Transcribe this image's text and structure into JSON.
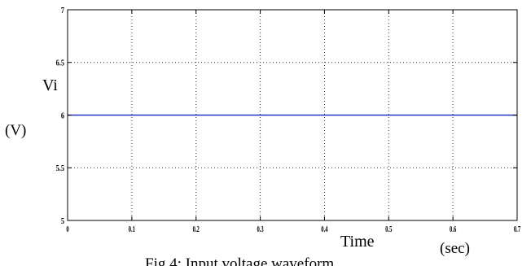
{
  "chart_data": {
    "type": "line",
    "title": "",
    "xlabel": "Time",
    "ylabel": "Vi",
    "y_unit": "(V)",
    "x_unit": "(sec)",
    "caption": "Fig.4: Input voltage waveform",
    "xlim": [
      0,
      0.7
    ],
    "ylim": [
      5,
      7
    ],
    "x_ticks": [
      "0",
      "0.1",
      "0.2",
      "0.3",
      "0.4",
      "0.5",
      "0.6",
      "0.7"
    ],
    "y_ticks": [
      "5",
      "5.5",
      "6",
      "6.5",
      "7"
    ],
    "grid": true,
    "series": [
      {
        "x": [
          0,
          0.7
        ],
        "y": [
          6,
          6
        ],
        "color": "#2233cc"
      }
    ]
  }
}
